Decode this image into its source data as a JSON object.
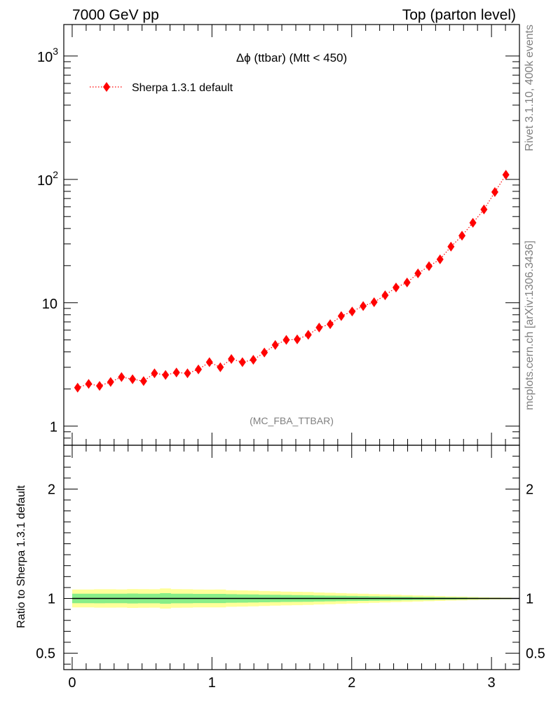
{
  "header": {
    "left": "7000 GeV pp",
    "right": "Top (parton level)"
  },
  "side_labels": {
    "rivet": "Rivet 3.1.10,  400k events",
    "mcplots": "mcplots.cern.ch [arXiv:1306.3436]"
  },
  "chart_data": [
    {
      "type": "scatter",
      "title": "Δϕ (ttbar) (Mtt < 450)",
      "watermark": "(MC_FBA_TTBAR)",
      "xlabel": "",
      "ylabel": "",
      "yscale": "log",
      "xlim": [
        -0.06,
        3.2
      ],
      "ylim": [
        0.7,
        1800
      ],
      "y_ticks": [
        {
          "value": 1,
          "label": "1"
        },
        {
          "value": 10,
          "label": "10"
        },
        {
          "value": 100,
          "label": "10",
          "sup": "2"
        },
        {
          "value": 1000,
          "label": "10",
          "sup": "3"
        }
      ],
      "legend_position": "top-left",
      "series": [
        {
          "name": "Sherpa 1.3.1 default",
          "color": "#ff0000",
          "marker": "diamond",
          "line": "dotted",
          "x": [
            0.039,
            0.118,
            0.196,
            0.275,
            0.353,
            0.432,
            0.511,
            0.589,
            0.668,
            0.746,
            0.825,
            0.903,
            0.982,
            1.06,
            1.139,
            1.218,
            1.296,
            1.375,
            1.453,
            1.532,
            1.61,
            1.689,
            1.767,
            1.846,
            1.925,
            2.003,
            2.082,
            2.16,
            2.239,
            2.317,
            2.396,
            2.474,
            2.553,
            2.632,
            2.71,
            2.789,
            2.867,
            2.946,
            3.024,
            3.103
          ],
          "y": [
            2.05,
            2.2,
            2.12,
            2.28,
            2.5,
            2.4,
            2.32,
            2.68,
            2.6,
            2.72,
            2.68,
            2.88,
            3.3,
            3.0,
            3.5,
            3.3,
            3.45,
            3.95,
            4.55,
            5.0,
            5.05,
            5.5,
            6.3,
            6.7,
            7.8,
            8.5,
            9.4,
            10.1,
            11.5,
            13.3,
            14.6,
            17.3,
            19.8,
            22.5,
            28.5,
            35.0,
            44.5,
            57.0,
            79.0,
            109.0
          ]
        }
      ]
    },
    {
      "type": "area",
      "title": "",
      "ylabel": "Ratio to Sherpa 1.3.1 default",
      "xlabel": "",
      "xlim": [
        -0.06,
        3.2
      ],
      "ylim": [
        0.35,
        2.4
      ],
      "x_ticks": [
        0,
        1,
        2,
        3
      ],
      "y_ticks": [
        {
          "value": 0.5,
          "label": "0.5"
        },
        {
          "value": 1,
          "label": "1"
        },
        {
          "value": 2,
          "label": "2"
        }
      ],
      "reference_line": 1,
      "bands": {
        "x_edges": [
          0.0,
          0.079,
          0.157,
          0.236,
          0.314,
          0.393,
          0.471,
          0.55,
          0.628,
          0.707,
          0.785,
          0.864,
          0.942,
          1.021,
          1.1,
          1.178,
          1.257,
          1.335,
          1.414,
          1.492,
          1.571,
          1.649,
          1.728,
          1.806,
          1.885,
          1.963,
          2.042,
          2.121,
          2.199,
          2.278,
          2.356,
          2.435,
          2.513,
          2.592,
          2.67,
          2.749,
          2.827,
          2.906,
          2.985,
          3.063,
          3.142
        ],
        "yellow_half_width": [
          0.082,
          0.082,
          0.084,
          0.084,
          0.083,
          0.086,
          0.085,
          0.084,
          0.092,
          0.085,
          0.084,
          0.082,
          0.081,
          0.082,
          0.076,
          0.074,
          0.072,
          0.069,
          0.066,
          0.063,
          0.061,
          0.059,
          0.055,
          0.052,
          0.049,
          0.046,
          0.043,
          0.04,
          0.037,
          0.034,
          0.031,
          0.028,
          0.025,
          0.022,
          0.019,
          0.017,
          0.014,
          0.012,
          0.009,
          0.007
        ],
        "green_half_width": [
          0.043,
          0.043,
          0.044,
          0.043,
          0.043,
          0.045,
          0.044,
          0.044,
          0.048,
          0.044,
          0.044,
          0.042,
          0.042,
          0.042,
          0.039,
          0.038,
          0.037,
          0.035,
          0.034,
          0.032,
          0.031,
          0.03,
          0.028,
          0.026,
          0.025,
          0.023,
          0.022,
          0.02,
          0.019,
          0.017,
          0.016,
          0.014,
          0.013,
          0.011,
          0.01,
          0.009,
          0.007,
          0.006,
          0.005,
          0.004
        ],
        "yellow_color": "#ffff99",
        "green_color": "#88ee88"
      }
    }
  ]
}
